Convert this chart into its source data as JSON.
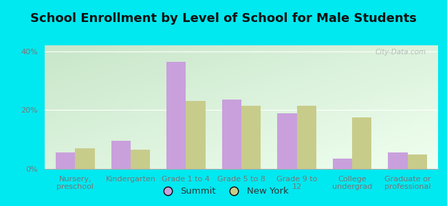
{
  "title": "School Enrollment by Level of School for Male Students",
  "categories": [
    "Nursery,\npreschool",
    "Kindergarten",
    "Grade 1 to 4",
    "Grade 5 to 8",
    "Grade 9 to\n12",
    "College\nundergrad",
    "Graduate or\nprofessional"
  ],
  "summit_values": [
    5.5,
    9.5,
    36.5,
    23.5,
    19.0,
    3.5,
    5.5
  ],
  "newyork_values": [
    7.0,
    6.5,
    23.0,
    21.5,
    21.5,
    17.5,
    5.0
  ],
  "summit_color": "#c9a0dc",
  "newyork_color": "#c8cc8a",
  "background_outer": "#00e8f0",
  "gradient_colors": [
    "#c8e6c9",
    "#f0fff0"
  ],
  "ytick_labels": [
    "0%",
    "20%",
    "40%"
  ],
  "ytick_values": [
    0,
    20,
    40
  ],
  "ylim": [
    0,
    42
  ],
  "bar_width": 0.35,
  "legend_labels": [
    "Summit",
    "New York"
  ],
  "watermark": "City-Data.com",
  "title_fontsize": 13,
  "tick_fontsize": 8,
  "title_color": "#111111",
  "tick_color": "#777777"
}
